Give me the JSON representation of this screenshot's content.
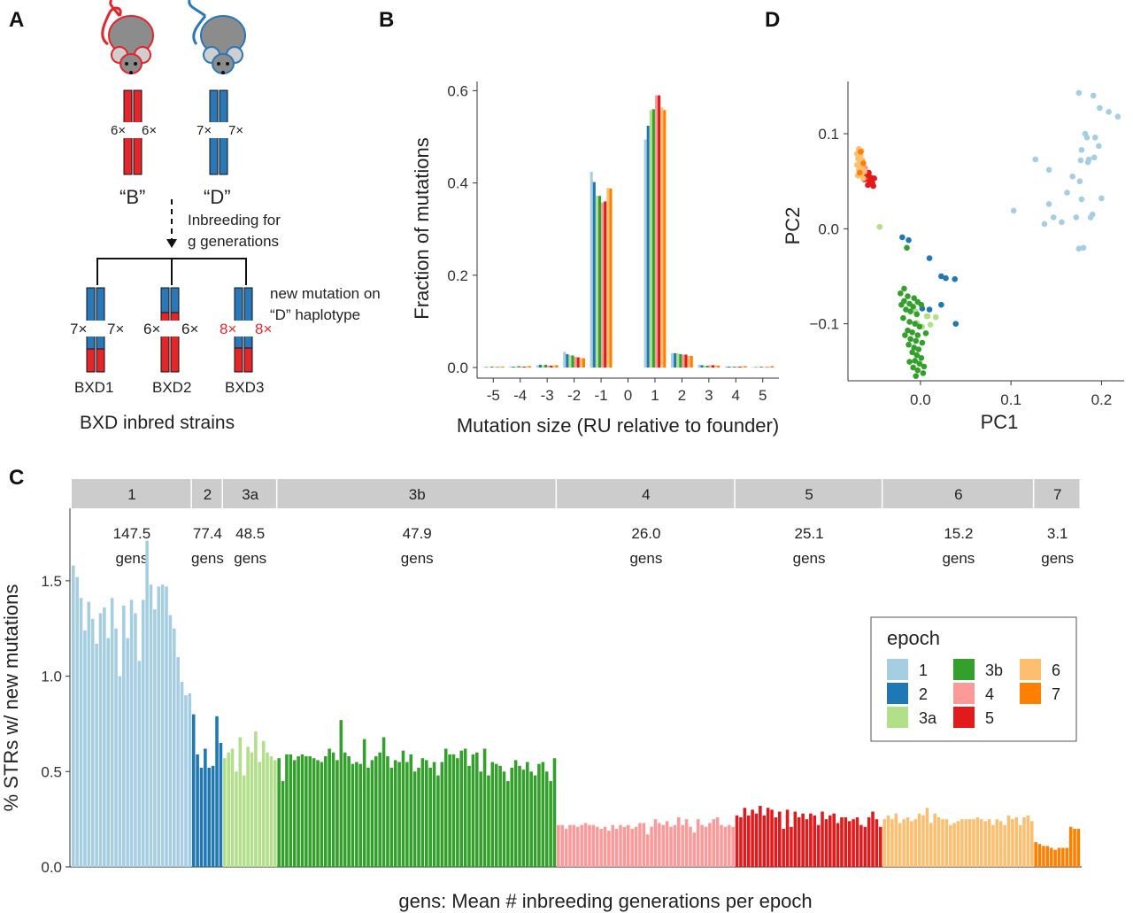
{
  "panels": {
    "a": "A",
    "b": "B",
    "c": "C",
    "d": "D"
  },
  "colors": {
    "founder_b": "#e3262c",
    "founder_d": "#2b78b8",
    "mouse_body": "#8c8c8c",
    "strip_bg": "#cccccc",
    "epochs": {
      "1": "#a6cee3",
      "2": "#1f78b4",
      "3a": "#b2df8a",
      "3b": "#33a02c",
      "4": "#fb9a99",
      "5": "#e31a1c",
      "6": "#fdbf6f",
      "7": "#ff7f00"
    }
  },
  "diagram": {
    "founders": [
      {
        "label": "“B”",
        "left_count": "6×",
        "right_count": "6×"
      },
      {
        "label": "“D”",
        "left_count": "7×",
        "right_count": "7×"
      }
    ],
    "inbreeding_line1": "Inbreeding for",
    "inbreeding_line2": "g generations",
    "mutation_line1": "new mutation on",
    "mutation_line2": "“D” haplotype",
    "strains": [
      {
        "name": "BXD1",
        "left_count": "7×",
        "right_count": "7×"
      },
      {
        "name": "BXD2",
        "left_count": "6×",
        "right_count": "6×"
      },
      {
        "name": "BXD3",
        "left_count": "8×",
        "right_count": "8×"
      }
    ],
    "caption": "BXD inbred strains"
  },
  "chart_data": [
    {
      "id": "B",
      "type": "bar",
      "xlabel": "Mutation size (RU relative to founder)",
      "ylabel": "Fraction of mutations",
      "xticks": [
        -5,
        -4,
        -3,
        -2,
        -1,
        0,
        1,
        2,
        3,
        4,
        5
      ],
      "yticks": [
        0.0,
        0.2,
        0.4,
        0.6
      ],
      "ylim": [
        0,
        0.62
      ],
      "xlim": [
        -5.6,
        5.6
      ],
      "x": [
        -5,
        -4,
        -3,
        -2,
        -1,
        1,
        2,
        3,
        4,
        5
      ],
      "series": [
        {
          "epoch": "1",
          "values": [
            0.001,
            0.002,
            0.005,
            0.034,
            0.424,
            0.494,
            0.031,
            0.006,
            0.002,
            0.001
          ]
        },
        {
          "epoch": "2",
          "values": [
            0.001,
            0.002,
            0.006,
            0.029,
            0.402,
            0.524,
            0.031,
            0.005,
            0.002,
            0.001
          ]
        },
        {
          "epoch": "3a",
          "values": [
            0.001,
            0.002,
            0.005,
            0.027,
            0.372,
            0.558,
            0.031,
            0.004,
            0.002,
            0.001
          ]
        },
        {
          "epoch": "3b",
          "values": [
            0.002,
            0.003,
            0.006,
            0.026,
            0.372,
            0.56,
            0.029,
            0.004,
            0.002,
            0.002
          ]
        },
        {
          "epoch": "4",
          "values": [
            0.001,
            0.002,
            0.004,
            0.023,
            0.358,
            0.59,
            0.028,
            0.005,
            0.002,
            0.001
          ]
        },
        {
          "epoch": "5",
          "values": [
            0.001,
            0.002,
            0.004,
            0.022,
            0.36,
            0.59,
            0.028,
            0.005,
            0.002,
            0.001
          ]
        },
        {
          "epoch": "6",
          "values": [
            0.002,
            0.003,
            0.005,
            0.021,
            0.389,
            0.564,
            0.025,
            0.005,
            0.003,
            0.002
          ]
        },
        {
          "epoch": "7",
          "values": [
            0.002,
            0.003,
            0.005,
            0.02,
            0.388,
            0.558,
            0.025,
            0.004,
            0.003,
            0.003
          ]
        }
      ]
    },
    {
      "id": "D",
      "type": "scatter",
      "xlabel": "PC1",
      "ylabel": "PC2",
      "xticks": [
        0.0,
        0.1,
        0.2
      ],
      "yticks": [
        -0.1,
        0.0,
        0.1
      ],
      "xlim": [
        -0.08,
        0.225
      ],
      "ylim": [
        -0.16,
        0.155
      ],
      "points": [
        {
          "epoch": "1",
          "xy": [
            [
              0.175,
              0.143
            ],
            [
              0.191,
              0.14
            ],
            [
              0.198,
              0.127
            ],
            [
              0.208,
              0.123
            ],
            [
              0.218,
              0.118
            ],
            [
              0.182,
              0.1
            ],
            [
              0.184,
              0.096
            ],
            [
              0.193,
              0.096
            ],
            [
              0.197,
              0.087
            ],
            [
              0.178,
              0.083
            ],
            [
              0.192,
              0.075
            ],
            [
              0.186,
              0.073
            ],
            [
              0.177,
              0.072
            ],
            [
              0.127,
              0.073
            ],
            [
              0.142,
              0.062
            ],
            [
              0.168,
              0.055
            ],
            [
              0.176,
              0.05
            ],
            [
              0.185,
              0.07
            ],
            [
              0.162,
              0.038
            ],
            [
              0.2,
              0.032
            ],
            [
              0.178,
              0.031
            ],
            [
              0.103,
              0.019
            ],
            [
              0.142,
              0.026
            ],
            [
              0.172,
              0.012
            ],
            [
              0.19,
              0.015
            ],
            [
              0.147,
              0.012
            ],
            [
              0.156,
              0.007
            ],
            [
              0.137,
              0.005
            ],
            [
              0.188,
              0.012
            ],
            [
              0.18,
              -0.02
            ],
            [
              0.175,
              -0.021
            ]
          ]
        },
        {
          "epoch": "2",
          "xy": [
            [
              -0.02,
              -0.009
            ],
            [
              -0.013,
              -0.012
            ],
            [
              0.01,
              -0.031
            ],
            [
              0.023,
              -0.05
            ],
            [
              0.028,
              -0.052
            ],
            [
              0.038,
              -0.053
            ],
            [
              0.01,
              -0.085
            ],
            [
              0.023,
              -0.08
            ],
            [
              0.039,
              -0.1
            ],
            [
              0.002,
              -0.084
            ]
          ]
        },
        {
          "epoch": "3a",
          "xy": [
            [
              -0.045,
              0.002
            ],
            [
              -0.005,
              -0.087
            ],
            [
              0.008,
              -0.092
            ],
            [
              0.017,
              -0.093
            ],
            [
              -0.004,
              -0.099
            ],
            [
              0.011,
              -0.101
            ],
            [
              0.002,
              -0.103
            ],
            [
              0.007,
              -0.092
            ]
          ]
        },
        {
          "epoch": "3b",
          "xy": [
            [
              -0.022,
              -0.068
            ],
            [
              -0.014,
              -0.071
            ],
            [
              -0.007,
              -0.073
            ],
            [
              -0.018,
              -0.076
            ],
            [
              -0.012,
              -0.079
            ],
            [
              -0.003,
              -0.077
            ],
            [
              -0.021,
              -0.08
            ],
            [
              -0.008,
              -0.082
            ],
            [
              0.001,
              -0.08
            ],
            [
              -0.016,
              -0.085
            ],
            [
              -0.011,
              -0.087
            ],
            [
              -0.004,
              -0.09
            ],
            [
              -0.019,
              -0.094
            ],
            [
              -0.012,
              -0.098
            ],
            [
              -0.006,
              -0.1
            ],
            [
              -0.001,
              -0.103
            ],
            [
              -0.014,
              -0.107
            ],
            [
              -0.009,
              -0.109
            ],
            [
              -0.003,
              -0.112
            ],
            [
              -0.011,
              -0.116
            ],
            [
              -0.005,
              -0.118
            ],
            [
              0.002,
              -0.12
            ],
            [
              -0.013,
              -0.122
            ],
            [
              -0.007,
              -0.125
            ],
            [
              -0.002,
              -0.127
            ],
            [
              -0.009,
              -0.13
            ],
            [
              -0.004,
              -0.133
            ],
            [
              0.001,
              -0.136
            ],
            [
              -0.006,
              -0.139
            ],
            [
              -0.001,
              -0.142
            ],
            [
              -0.008,
              -0.146
            ],
            [
              -0.003,
              -0.149
            ],
            [
              0.003,
              -0.152
            ],
            [
              -0.005,
              -0.155
            ],
            [
              0.004,
              -0.145
            ],
            [
              -0.012,
              -0.14
            ],
            [
              -0.017,
              -0.112
            ],
            [
              0.006,
              -0.11
            ],
            [
              -0.015,
              -0.02
            ],
            [
              -0.018,
              -0.063
            ]
          ]
        },
        {
          "epoch": "4",
          "xy": [
            [
              -0.064,
              0.067
            ],
            [
              -0.061,
              0.064
            ],
            [
              -0.066,
              0.06
            ],
            [
              -0.059,
              0.058
            ],
            [
              -0.063,
              0.055
            ],
            [
              -0.06,
              0.052
            ]
          ]
        },
        {
          "epoch": "5",
          "xy": [
            [
              -0.059,
              0.056
            ],
            [
              -0.055,
              0.054
            ],
            [
              -0.062,
              0.052
            ],
            [
              -0.056,
              0.05
            ],
            [
              -0.053,
              0.048
            ],
            [
              -0.058,
              0.046
            ],
            [
              -0.054,
              0.051
            ],
            [
              -0.051,
              0.053
            ],
            [
              -0.057,
              0.059
            ],
            [
              -0.052,
              0.045
            ]
          ]
        },
        {
          "epoch": "6",
          "xy": [
            [
              -0.068,
              0.084
            ],
            [
              -0.065,
              0.082
            ],
            [
              -0.07,
              0.079
            ],
            [
              -0.066,
              0.077
            ],
            [
              -0.069,
              0.074
            ],
            [
              -0.064,
              0.072
            ],
            [
              -0.067,
              0.07
            ],
            [
              -0.07,
              0.067
            ],
            [
              -0.065,
              0.065
            ],
            [
              -0.068,
              0.062
            ],
            [
              -0.062,
              0.06
            ],
            [
              -0.066,
              0.058
            ],
            [
              -0.069,
              0.056
            ],
            [
              -0.063,
              0.053
            ]
          ]
        },
        {
          "epoch": "7",
          "xy": [
            [
              -0.066,
              0.081
            ],
            [
              -0.063,
              0.069
            ],
            [
              -0.067,
              0.059
            ]
          ]
        }
      ]
    },
    {
      "id": "C",
      "type": "bar",
      "xlabel": "gens: Mean # inbreeding generations per epoch",
      "ylabel": "% STRs w/ new mutations",
      "yticks": [
        0.0,
        0.5,
        1.0,
        1.5
      ],
      "ylim": [
        0,
        1.88
      ],
      "epochs": [
        {
          "epoch": "1",
          "gens_value": "147.5",
          "gens_unit": "gens",
          "values": [
            1.58,
            1.52,
            1.41,
            1.24,
            1.39,
            1.3,
            1.17,
            1.33,
            1.36,
            1.2,
            1.41,
            1.25,
            1.0,
            1.37,
            1.2,
            1.4,
            1.33,
            1.08,
            1.4,
            1.71,
            1.48,
            1.35,
            1.47,
            1.48,
            1.47,
            1.32,
            1.25,
            1.1,
            0.97,
            0.9,
            0.91
          ]
        },
        {
          "epoch": "2",
          "gens_value": "77.4",
          "gens_unit": "gens",
          "values": [
            0.8,
            0.59,
            0.52,
            0.62,
            0.52,
            0.53,
            0.79,
            0.65
          ]
        },
        {
          "epoch": "3a",
          "gens_value": "48.5",
          "gens_unit": "gens",
          "values": [
            0.57,
            0.6,
            0.62,
            0.5,
            0.68,
            0.48,
            0.63,
            0.6,
            0.71,
            0.55,
            0.66,
            0.6,
            0.58,
            0.56
          ]
        },
        {
          "epoch": "3b",
          "gens_value": "47.9",
          "gens_unit": "gens",
          "values": [
            0.57,
            0.45,
            0.59,
            0.59,
            0.56,
            0.58,
            0.59,
            0.58,
            0.58,
            0.57,
            0.56,
            0.55,
            0.58,
            0.62,
            0.6,
            0.56,
            0.77,
            0.6,
            0.58,
            0.54,
            0.55,
            0.54,
            0.67,
            0.52,
            0.56,
            0.58,
            0.6,
            0.68,
            0.58,
            0.52,
            0.56,
            0.55,
            0.61,
            0.55,
            0.59,
            0.5,
            0.52,
            0.57,
            0.56,
            0.52,
            0.55,
            0.48,
            0.55,
            0.62,
            0.59,
            0.59,
            0.57,
            0.61,
            0.62,
            0.53,
            0.59,
            0.6,
            0.5,
            0.62,
            0.48,
            0.55,
            0.54,
            0.53,
            0.5,
            0.45,
            0.52,
            0.56,
            0.53,
            0.51,
            0.55,
            0.5,
            0.48,
            0.54,
            0.55,
            0.5,
            0.45,
            0.57
          ]
        },
        {
          "epoch": "4",
          "gens_value": "26.0",
          "gens_unit": "gens",
          "values": [
            0.22,
            0.22,
            0.2,
            0.22,
            0.22,
            0.21,
            0.22,
            0.23,
            0.22,
            0.22,
            0.21,
            0.2,
            0.21,
            0.19,
            0.22,
            0.2,
            0.22,
            0.21,
            0.22,
            0.2,
            0.21,
            0.23,
            0.23,
            0.17,
            0.21,
            0.25,
            0.23,
            0.22,
            0.24,
            0.21,
            0.22,
            0.26,
            0.22,
            0.25,
            0.21,
            0.18,
            0.25,
            0.22,
            0.21,
            0.23,
            0.25,
            0.26,
            0.22,
            0.21,
            0.22,
            0.21
          ]
        },
        {
          "epoch": "5",
          "gens_value": "25.1",
          "gens_unit": "gens",
          "values": [
            0.27,
            0.26,
            0.31,
            0.27,
            0.3,
            0.28,
            0.32,
            0.27,
            0.31,
            0.3,
            0.26,
            0.29,
            0.2,
            0.3,
            0.21,
            0.29,
            0.26,
            0.28,
            0.25,
            0.28,
            0.27,
            0.22,
            0.29,
            0.25,
            0.27,
            0.28,
            0.23,
            0.26,
            0.26,
            0.24,
            0.25,
            0.26,
            0.22,
            0.21,
            0.26,
            0.29,
            0.25,
            0.21
          ]
        },
        {
          "epoch": "6",
          "gens_value": "15.2",
          "gens_unit": "gens",
          "values": [
            0.25,
            0.27,
            0.25,
            0.28,
            0.23,
            0.25,
            0.26,
            0.24,
            0.25,
            0.28,
            0.27,
            0.31,
            0.23,
            0.28,
            0.26,
            0.25,
            0.25,
            0.22,
            0.23,
            0.24,
            0.25,
            0.25,
            0.25,
            0.25,
            0.26,
            0.25,
            0.24,
            0.25,
            0.22,
            0.25,
            0.24,
            0.22,
            0.27,
            0.25,
            0.26,
            0.22,
            0.26,
            0.27,
            0.24
          ]
        },
        {
          "epoch": "7",
          "gens_value": "3.1",
          "gens_unit": "gens",
          "values": [
            0.13,
            0.12,
            0.11,
            0.11,
            0.1,
            0.09,
            0.1,
            0.1,
            0.1,
            0.21,
            0.2,
            0.2
          ]
        }
      ],
      "legend": {
        "title": "epoch",
        "placement": "right",
        "items": [
          "1",
          "2",
          "3a",
          "3b",
          "4",
          "5",
          "6",
          "7"
        ]
      }
    }
  ]
}
